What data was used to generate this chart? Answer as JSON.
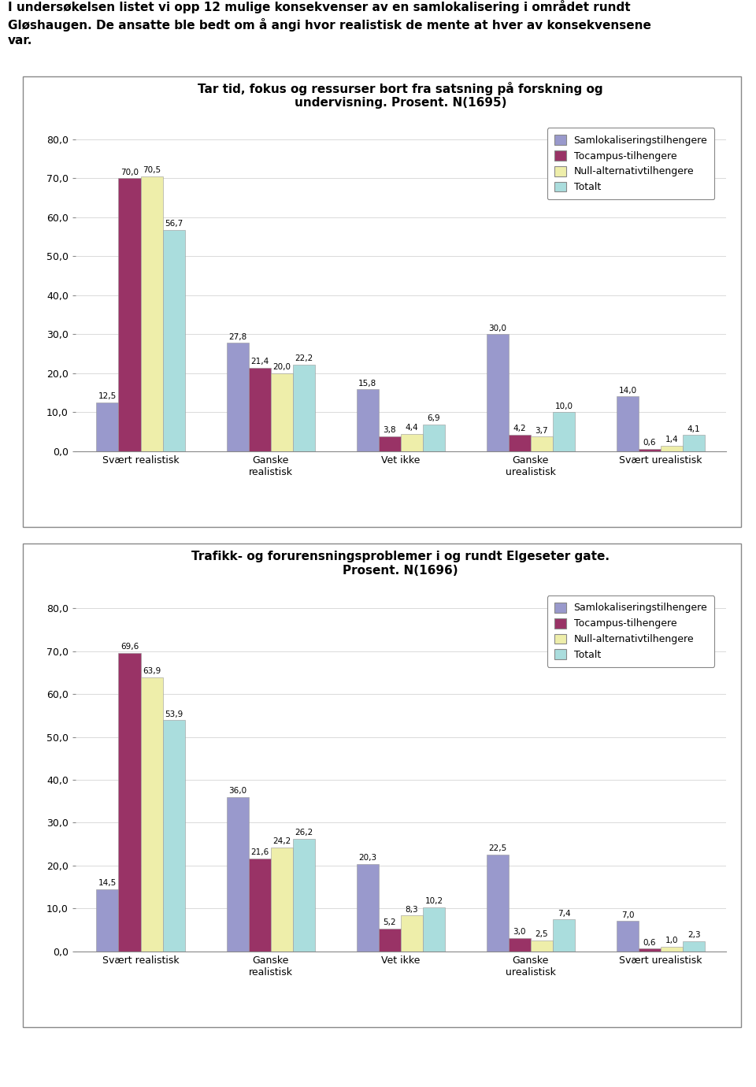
{
  "intro_line1": "I undersøkelsen listet vi opp 12 mulige konsekvenser av en samlokalisering i området rundt",
  "intro_line2": "Gløshaugen. De ansatte ble bedt om å angi hvor realistisk de mente at hver av konsekvensene",
  "intro_line3": "var.",
  "chart1": {
    "title": "Tar tid, fokus og ressurser bort fra satsning på forskning og\nundervisning. Prosent. N(1695)",
    "categories": [
      "Svært realistisk",
      "Ganske\nrealistisk",
      "Vet ikke",
      "Ganske\nurealistisk",
      "Svært urealistisk"
    ],
    "series": {
      "Samlokaliseringstilhengere": [
        12.5,
        27.8,
        15.8,
        30.0,
        14.0
      ],
      "Tocampus-tilhengere": [
        70.0,
        21.4,
        3.8,
        4.2,
        0.6
      ],
      "Null-alternativtilhengere": [
        70.5,
        20.0,
        4.4,
        3.7,
        1.4
      ],
      "Totalt": [
        56.7,
        22.2,
        6.9,
        10.0,
        4.1
      ]
    },
    "ylim": [
      0,
      85
    ],
    "yticks": [
      0.0,
      10.0,
      20.0,
      30.0,
      40.0,
      50.0,
      60.0,
      70.0,
      80.0
    ]
  },
  "chart2": {
    "title": "Trafikk- og forurensningsproblemer i og rundt Elgeseter gate.\nProsent. N(1696)",
    "categories": [
      "Svært realistisk",
      "Ganske\nrealistisk",
      "Vet ikke",
      "Ganske\nurealistisk",
      "Svært urealistisk"
    ],
    "series": {
      "Samlokaliseringstilhengere": [
        14.5,
        36.0,
        20.3,
        22.5,
        7.0
      ],
      "Tocampus-tilhengere": [
        69.6,
        21.6,
        5.2,
        3.0,
        0.6
      ],
      "Null-alternativtilhengere": [
        63.9,
        24.2,
        8.3,
        2.5,
        1.0
      ],
      "Totalt": [
        53.9,
        26.2,
        10.2,
        7.4,
        2.3
      ]
    },
    "ylim": [
      0,
      85
    ],
    "yticks": [
      0.0,
      10.0,
      20.0,
      30.0,
      40.0,
      50.0,
      60.0,
      70.0,
      80.0
    ]
  },
  "colors": {
    "Samlokaliseringstilhengere": "#9999cc",
    "Tocampus-tilhengere": "#993366",
    "Null-alternativtilhengere": "#eeeeaa",
    "Totalt": "#aadddd"
  },
  "bar_width": 0.17,
  "legend_labels": [
    "Samlokaliseringstilhengere",
    "Tocampus-tilhengere",
    "Null-alternativtilhengere",
    "Totalt"
  ],
  "value_fontsize": 7.5,
  "title_fontsize": 11,
  "tick_fontsize": 9,
  "legend_fontsize": 9,
  "intro_fontsize": 11
}
